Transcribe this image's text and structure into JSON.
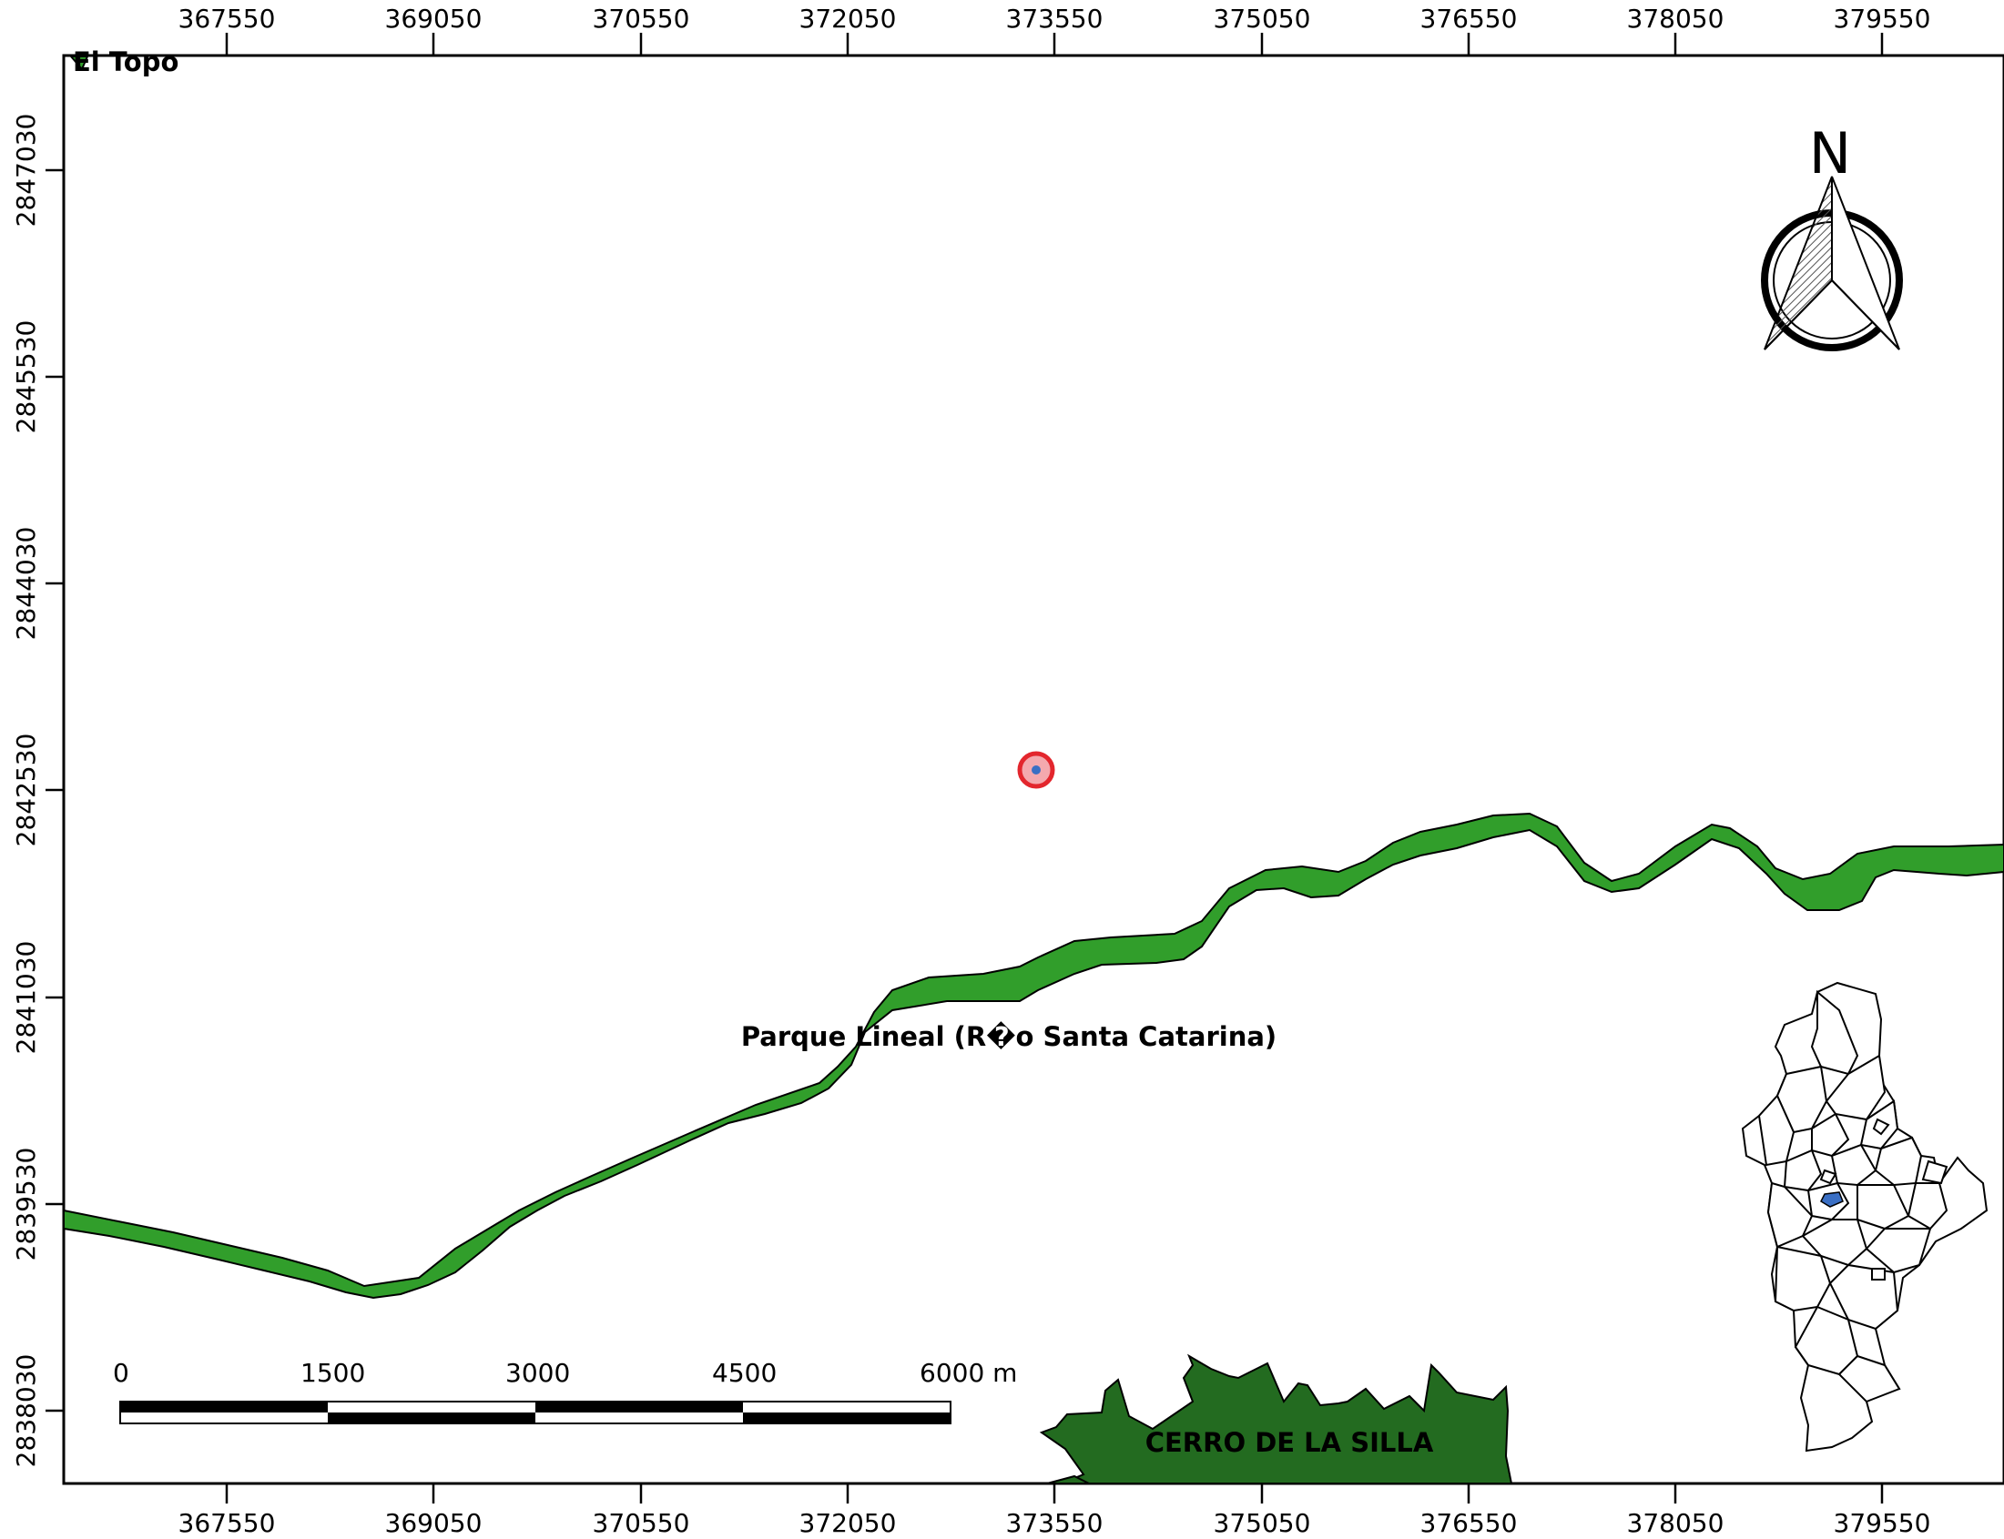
{
  "map": {
    "x_ticks": [
      "367550",
      "369050",
      "370550",
      "372050",
      "373550",
      "375050",
      "376550",
      "378050",
      "379550"
    ],
    "y_ticks": [
      "2847030",
      "2845530",
      "2844030",
      "2842530",
      "2841030",
      "2839530",
      "2838030"
    ],
    "labels": {
      "layer_title": "El Topo",
      "river": "Parque Lineal (R�o Santa Catarina)",
      "mountain": "CERRO DE LA SILLA"
    },
    "north_arrow": "N",
    "scale_bar": {
      "labels": [
        "0",
        "1500",
        "3000",
        "4500",
        "6000 m"
      ]
    },
    "icons": [
      "north-arrow-icon",
      "locator-map-icon",
      "point-marker-icon",
      "legend-swatch-icon"
    ],
    "colors": {
      "river_green": "#319e2b",
      "mountain_green": "#236b20",
      "marker_red": "#e3262d",
      "marker_fill": "#f4a9ae",
      "marker_blue": "#3a6fc4",
      "locator_highlight": "#3a6fc4"
    }
  }
}
